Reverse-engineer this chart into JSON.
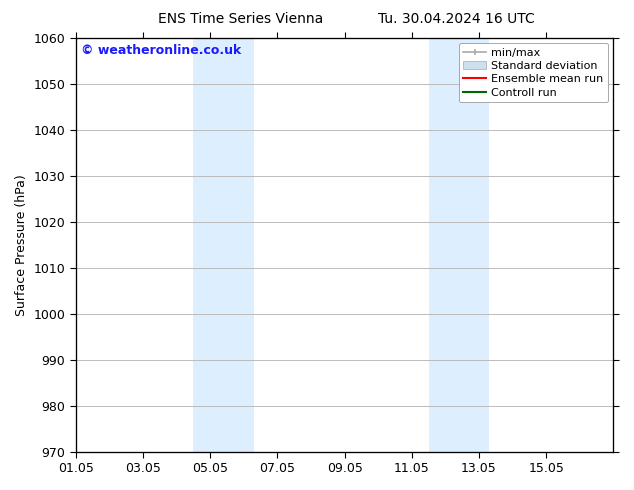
{
  "title_left": "ENS Time Series Vienna",
  "title_right": "Tu. 30.04.2024 16 UTC",
  "ylabel": "Surface Pressure (hPa)",
  "ylim": [
    970,
    1060
  ],
  "yticks": [
    970,
    980,
    990,
    1000,
    1010,
    1020,
    1030,
    1040,
    1050,
    1060
  ],
  "xtick_labels": [
    "01.05",
    "03.05",
    "05.05",
    "07.05",
    "09.05",
    "11.05",
    "13.05",
    "15.05"
  ],
  "xtick_positions": [
    0,
    2,
    4,
    6,
    8,
    10,
    12,
    14
  ],
  "xlim": [
    0,
    16
  ],
  "shaded_bands": [
    {
      "x_start": 3.5,
      "x_end": 5.3,
      "color": "#ddeeff"
    },
    {
      "x_start": 10.5,
      "x_end": 12.3,
      "color": "#ddeeff"
    }
  ],
  "watermark_text": "© weatheronline.co.uk",
  "watermark_color": "#1a1aff",
  "legend_labels": [
    "min/max",
    "Standard deviation",
    "Ensemble mean run",
    "Controll run"
  ],
  "legend_colors": [
    "#aaaaaa",
    "#cce0f0",
    "#ff0000",
    "#006600"
  ],
  "bg_color": "#ffffff",
  "grid_color": "#bbbbbb",
  "spine_color": "#000000",
  "title_fontsize": 10,
  "axis_label_fontsize": 9,
  "tick_fontsize": 9,
  "legend_fontsize": 8,
  "watermark_fontsize": 9
}
